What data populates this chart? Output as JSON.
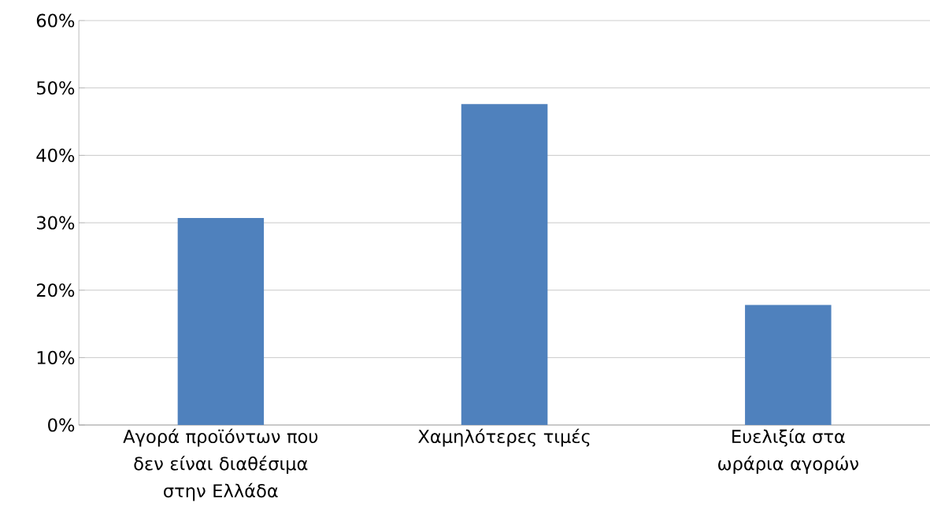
{
  "chart_data": {
    "type": "bar",
    "categories": [
      "Αγορά προϊόντων που δεν είναι διαθέσιμα στην Ελλάδα",
      "Χαμηλότερες τιμές",
      "Ευελιξία στα ωράρια αγορών"
    ],
    "values": [
      30.7,
      47.6,
      17.8
    ],
    "color": "#4f81bd",
    "ylim": [
      0,
      60
    ],
    "yticks": [
      {
        "value": 0,
        "label": "0%"
      },
      {
        "value": 10,
        "label": "10%"
      },
      {
        "value": 20,
        "label": "20%"
      },
      {
        "value": 30,
        "label": "30%"
      },
      {
        "value": 40,
        "label": "40%"
      },
      {
        "value": 50,
        "label": "50%"
      },
      {
        "value": 60,
        "label": "60%"
      }
    ],
    "grid": "y"
  }
}
